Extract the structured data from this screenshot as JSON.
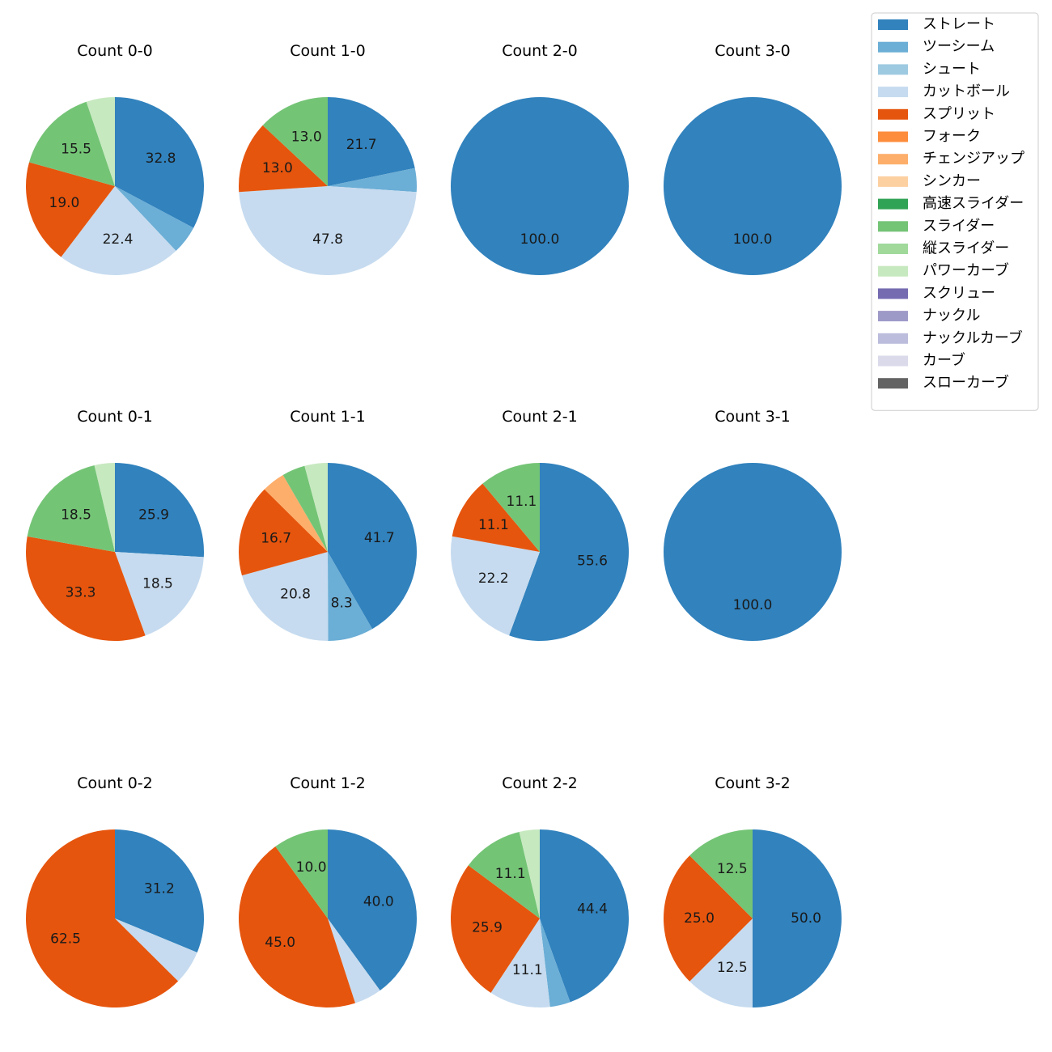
{
  "chart_data": {
    "type": "pie",
    "pitch_types": [
      {
        "name": "ストレート",
        "color": "#3182bd"
      },
      {
        "name": "ツーシーム",
        "color": "#6baed6"
      },
      {
        "name": "シュート",
        "color": "#9ecae1"
      },
      {
        "name": "カットボール",
        "color": "#c6dbef"
      },
      {
        "name": "スプリット",
        "color": "#e6550d"
      },
      {
        "name": "フォーク",
        "color": "#fd8d3c"
      },
      {
        "name": "チェンジアップ",
        "color": "#fdae6b"
      },
      {
        "name": "シンカー",
        "color": "#fdd0a2"
      },
      {
        "name": "高速スライダー",
        "color": "#31a354"
      },
      {
        "name": "スライダー",
        "color": "#74c476"
      },
      {
        "name": "縦スライダー",
        "color": "#a1d99b"
      },
      {
        "name": "パワーカーブ",
        "color": "#c7e9c0"
      },
      {
        "name": "スクリュー",
        "color": "#756bb1"
      },
      {
        "name": "ナックル",
        "color": "#9e9ac8"
      },
      {
        "name": "ナックルカーブ",
        "color": "#bcbddc"
      },
      {
        "name": "カーブ",
        "color": "#dadaeb"
      },
      {
        "name": "スローカーブ",
        "color": "#636363"
      }
    ],
    "charts": [
      {
        "title": "Count 0-0",
        "slices": [
          {
            "pitch": "ストレート",
            "value": 32.8
          },
          {
            "pitch": "ツーシーム",
            "value": 5.2
          },
          {
            "pitch": "カットボール",
            "value": 22.4
          },
          {
            "pitch": "スプリット",
            "value": 19.0
          },
          {
            "pitch": "スライダー",
            "value": 15.5
          },
          {
            "pitch": "パワーカーブ",
            "value": 5.2
          }
        ]
      },
      {
        "title": "Count 1-0",
        "slices": [
          {
            "pitch": "ストレート",
            "value": 21.7
          },
          {
            "pitch": "ツーシーム",
            "value": 4.3
          },
          {
            "pitch": "カットボール",
            "value": 47.8
          },
          {
            "pitch": "スプリット",
            "value": 13.0
          },
          {
            "pitch": "スライダー",
            "value": 13.0
          }
        ]
      },
      {
        "title": "Count 2-0",
        "slices": [
          {
            "pitch": "ストレート",
            "value": 100.0
          }
        ]
      },
      {
        "title": "Count 3-0",
        "slices": [
          {
            "pitch": "ストレート",
            "value": 100.0
          }
        ]
      },
      {
        "title": "Count 0-1",
        "slices": [
          {
            "pitch": "ストレート",
            "value": 25.9
          },
          {
            "pitch": "カットボール",
            "value": 18.5
          },
          {
            "pitch": "スプリット",
            "value": 33.3
          },
          {
            "pitch": "スライダー",
            "value": 18.5
          },
          {
            "pitch": "パワーカーブ",
            "value": 3.7
          }
        ]
      },
      {
        "title": "Count 1-1",
        "slices": [
          {
            "pitch": "ストレート",
            "value": 41.7
          },
          {
            "pitch": "ツーシーム",
            "value": 8.3
          },
          {
            "pitch": "カットボール",
            "value": 20.8
          },
          {
            "pitch": "スプリット",
            "value": 16.7
          },
          {
            "pitch": "チェンジアップ",
            "value": 4.2
          },
          {
            "pitch": "スライダー",
            "value": 4.2
          },
          {
            "pitch": "パワーカーブ",
            "value": 4.2
          }
        ]
      },
      {
        "title": "Count 2-1",
        "slices": [
          {
            "pitch": "ストレート",
            "value": 55.6
          },
          {
            "pitch": "カットボール",
            "value": 22.2
          },
          {
            "pitch": "スプリット",
            "value": 11.1
          },
          {
            "pitch": "スライダー",
            "value": 11.1
          }
        ]
      },
      {
        "title": "Count 3-1",
        "slices": [
          {
            "pitch": "ストレート",
            "value": 100.0
          }
        ]
      },
      {
        "title": "Count 0-2",
        "slices": [
          {
            "pitch": "ストレート",
            "value": 31.2
          },
          {
            "pitch": "カットボール",
            "value": 6.2
          },
          {
            "pitch": "スプリット",
            "value": 62.5
          }
        ]
      },
      {
        "title": "Count 1-2",
        "slices": [
          {
            "pitch": "ストレート",
            "value": 40.0
          },
          {
            "pitch": "カットボール",
            "value": 5.0
          },
          {
            "pitch": "スプリット",
            "value": 45.0
          },
          {
            "pitch": "スライダー",
            "value": 10.0
          }
        ]
      },
      {
        "title": "Count 2-2",
        "slices": [
          {
            "pitch": "ストレート",
            "value": 44.4
          },
          {
            "pitch": "ツーシーム",
            "value": 3.7
          },
          {
            "pitch": "カットボール",
            "value": 11.1
          },
          {
            "pitch": "スプリット",
            "value": 25.9
          },
          {
            "pitch": "スライダー",
            "value": 11.1
          },
          {
            "pitch": "パワーカーブ",
            "value": 3.7
          }
        ]
      },
      {
        "title": "Count 3-2",
        "slices": [
          {
            "pitch": "ストレート",
            "value": 50.0
          },
          {
            "pitch": "カットボール",
            "value": 12.5
          },
          {
            "pitch": "スプリット",
            "value": 25.0
          },
          {
            "pitch": "スライダー",
            "value": 12.5
          }
        ]
      }
    ],
    "label_threshold": 8,
    "start_angle_deg": 90,
    "direction": "clockwise",
    "legend_position": "top-right"
  }
}
